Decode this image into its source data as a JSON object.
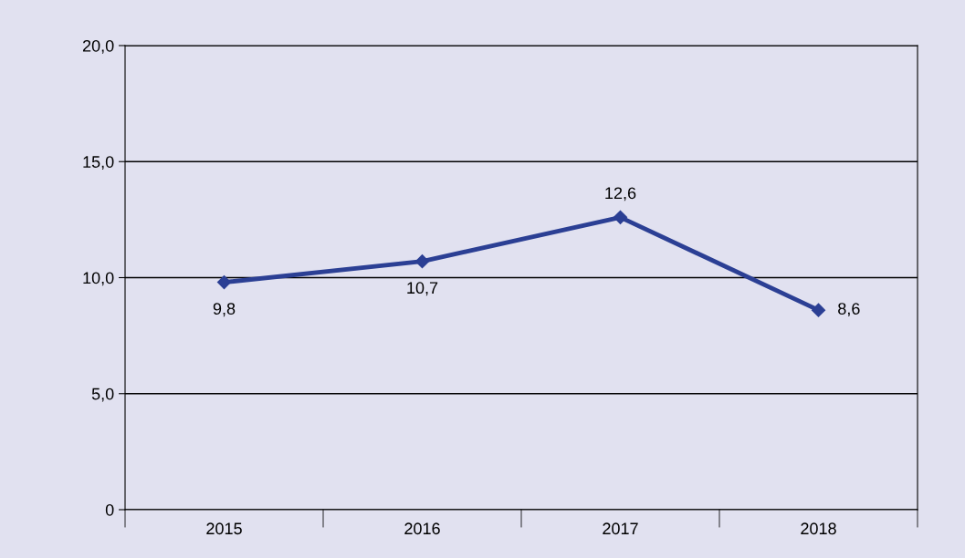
{
  "chart_data": {
    "type": "line",
    "categories": [
      "2015",
      "2016",
      "2017",
      "2018"
    ],
    "series": [
      {
        "color": "#2b3f94",
        "values": [
          9.8,
          10.7,
          12.6,
          8.6
        ]
      }
    ],
    "value_labels": [
      "9,8",
      "10,7",
      "12,6",
      "8,6"
    ],
    "ylim": [
      0,
      20
    ],
    "yticks": [
      {
        "value": 0,
        "label": "0"
      },
      {
        "value": 5,
        "label": "5,0"
      },
      {
        "value": 10,
        "label": "10,0"
      },
      {
        "value": 15,
        "label": "15,0"
      },
      {
        "value": 20,
        "label": "20,0"
      }
    ],
    "grid": "y",
    "marker": "diamond",
    "line_style": "solid"
  }
}
